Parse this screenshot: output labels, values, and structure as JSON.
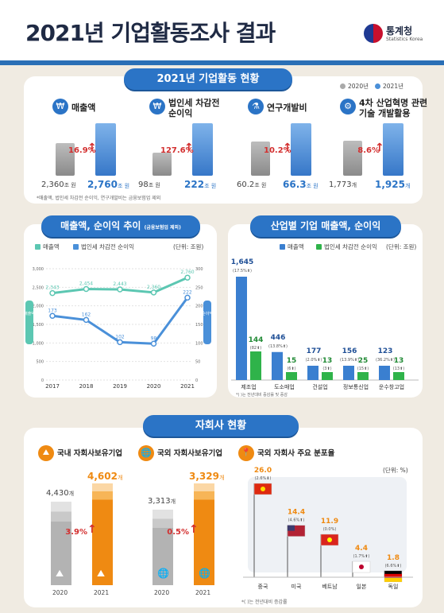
{
  "header": {
    "title": "2021년 기업활동조사 결과",
    "org": "통계청",
    "org_en": "Statistics Korea"
  },
  "s1": {
    "title": "2021년 기업활동 현황",
    "legend": [
      "2020년",
      "2021년"
    ],
    "kpis": [
      {
        "label1": "매출액",
        "label2": "",
        "pct": "16.9%",
        "v2020": "2,360",
        "u2020": "조 원",
        "v2021": "2,760",
        "u2021": "조 원",
        "v2020n": 2360,
        "v2021n": 2760
      },
      {
        "label1": "법인세 차감전",
        "label2": "순이익",
        "pct": "127.6%",
        "v2020": "98",
        "u2020": "조 원",
        "v2021": "222",
        "u2021": "조 원",
        "v2020n": 98,
        "v2021n": 222
      },
      {
        "label1": "연구개발비",
        "label2": "",
        "pct": "10.2%",
        "v2020": "60.2",
        "u2020": "조 원",
        "v2021": "66.3",
        "u2021": "조 원",
        "v2020n": 60.2,
        "v2021n": 66.3
      },
      {
        "label1": "4차 산업혁명 관련",
        "label2": "기술 개발활용",
        "pct": "8.6%",
        "v2020": "1,773",
        "u2020": "개",
        "v2021": "1,925",
        "u2021": "개",
        "v2020n": 1773,
        "v2021n": 1925
      }
    ],
    "note": "*매출액, 법인세 차감전 순이익, 연구개발비는 금융보험업 제외"
  },
  "s2": {
    "title": "매출액, 순이익 추이",
    "title_sub": "(금융보험업 제외)",
    "legend": [
      "매출액",
      "법인세 차감전 순이익"
    ],
    "unit": "(단위: 조원)",
    "yleft": "매출액",
    "yright": "순이익"
  },
  "s3": {
    "title": "산업별 기업 매출액, 순이익",
    "legend": [
      "매출액",
      "법인세 차감전 순이익"
    ],
    "unit": "(단위: 조원)",
    "note": "*( )는 전년대비 증감률 및 증감"
  },
  "s4": {
    "title": "자회사 현황",
    "p1": {
      "title": "국내 자회사보유기업",
      "years": [
        "2020",
        "2021"
      ],
      "v2020": "4,430",
      "v2021": "4,602",
      "u": "개",
      "pct": "3.9%",
      "v2020n": 4430,
      "v2021n": 4602
    },
    "p2": {
      "title": "국외 자회사보유기업",
      "years": [
        "2020",
        "2021"
      ],
      "v2020": "3,313",
      "v2021": "3,329",
      "u": "개",
      "pct": "0.5%",
      "v2020n": 3313,
      "v2021n": 3329
    },
    "p3": {
      "title": "국외 자회사 주요 분포율",
      "unit": "(단위: %)",
      "note": "*( )는 전년대비 증감률"
    }
  },
  "chart_data": [
    {
      "type": "line",
      "title": "매출액, 순이익 추이",
      "x": [
        "2017",
        "2018",
        "2019",
        "2020",
        "2021"
      ],
      "series": [
        {
          "name": "매출액",
          "axis": "left",
          "values": [
            2343,
            2454,
            2443,
            2360,
            2760
          ],
          "labels": [
            "2,343",
            "2,454",
            "2,443",
            "2,360",
            "2,760"
          ]
        },
        {
          "name": "법인세 차감전 순이익",
          "axis": "right",
          "values": [
            173,
            162,
            102,
            98,
            222
          ],
          "labels": [
            "173",
            "162",
            "102",
            "98",
            "222"
          ]
        }
      ],
      "yleft": {
        "ticks": [
          "3,000",
          "2,500",
          "2,000",
          "1,500",
          "1,000",
          "500",
          "0"
        ],
        "range": [
          0,
          3000
        ]
      },
      "yright": {
        "ticks": [
          "300",
          "250",
          "200",
          "150",
          "100",
          "50",
          "0"
        ],
        "range": [
          0,
          300
        ]
      },
      "colors": [
        "#5cc7b2",
        "#4a90d9"
      ]
    },
    {
      "type": "bar",
      "title": "산업별 기업 매출액, 순이익",
      "categories": [
        "제조업",
        "도소매업",
        "건설업",
        "정보통신업",
        "운수창고업"
      ],
      "series": [
        {
          "name": "매출액",
          "values": [
            1645,
            446,
            177,
            156,
            123
          ],
          "labels": [
            "1,645",
            "446",
            "177",
            "156",
            "123"
          ],
          "changes": [
            "(17.5%⬆)",
            "(13.8%⬆)",
            "(2.0%⬆)",
            "(13.9%⬆)",
            "(36.2%⬆)"
          ]
        },
        {
          "name": "법인세 차감전 순이익",
          "values": [
            144,
            15,
            13,
            25,
            13
          ],
          "labels": [
            "144",
            "15",
            "13",
            "25",
            "13"
          ],
          "changes": [
            "(82⬆)",
            "(6⬆)",
            "(3⬆)",
            "(15⬆)",
            "(13⬆)"
          ]
        }
      ],
      "colors": [
        "#3a7fd0",
        "#2fb34a"
      ]
    },
    {
      "type": "bar",
      "title": "국외 자회사 주요 분포율",
      "categories": [
        "중국",
        "미국",
        "베트남",
        "일본",
        "독일"
      ],
      "values": [
        26.0,
        14.4,
        11.9,
        4.4,
        1.8
      ],
      "labels": [
        "26.0",
        "14.4",
        "11.9",
        "4.4",
        "1.8"
      ],
      "changes": [
        "(2.6%⬇)",
        "(4.6%⬆)",
        "(0.0%)",
        "(1.7%⬆)",
        "(6.6%⬆)"
      ]
    }
  ]
}
